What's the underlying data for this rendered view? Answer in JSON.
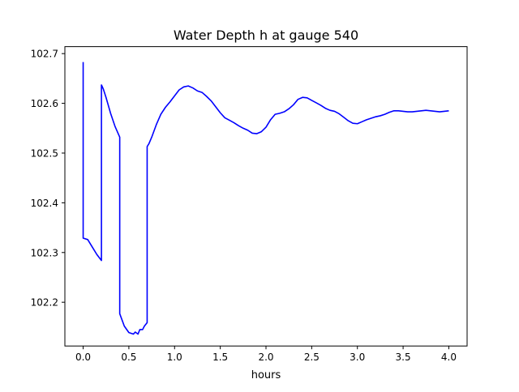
{
  "chart_data": {
    "type": "line",
    "title": "Water Depth h at gauge 540",
    "xlabel": "hours",
    "ylabel": "",
    "xlim": [
      -0.2,
      4.2
    ],
    "ylim": [
      102.112,
      102.714
    ],
    "xticks": [
      0.0,
      0.5,
      1.0,
      1.5,
      2.0,
      2.5,
      3.0,
      3.5,
      4.0
    ],
    "xtick_labels": [
      "0.0",
      "0.5",
      "1.0",
      "1.5",
      "2.0",
      "2.5",
      "3.0",
      "3.5",
      "4.0"
    ],
    "yticks": [
      102.2,
      102.3,
      102.4,
      102.5,
      102.6,
      102.7
    ],
    "ytick_labels": [
      "102.2",
      "102.3",
      "102.4",
      "102.5",
      "102.6",
      "102.7"
    ],
    "grid": false,
    "series": [
      {
        "name": "",
        "color": "#0000ff",
        "x": [
          0.0,
          0.0,
          0.05,
          0.1,
          0.15,
          0.2,
          0.2,
          0.22,
          0.25,
          0.3,
          0.35,
          0.4,
          0.4,
          0.45,
          0.5,
          0.55,
          0.57,
          0.6,
          0.62,
          0.65,
          0.67,
          0.7,
          0.7,
          0.72,
          0.75,
          0.8,
          0.85,
          0.9,
          0.95,
          1.0,
          1.05,
          1.1,
          1.15,
          1.2,
          1.25,
          1.3,
          1.35,
          1.4,
          1.45,
          1.5,
          1.55,
          1.6,
          1.65,
          1.7,
          1.75,
          1.8,
          1.85,
          1.9,
          1.95,
          2.0,
          2.05,
          2.1,
          2.15,
          2.2,
          2.25,
          2.3,
          2.35,
          2.4,
          2.45,
          2.5,
          2.55,
          2.6,
          2.65,
          2.7,
          2.75,
          2.8,
          2.85,
          2.9,
          2.95,
          3.0,
          3.05,
          3.1,
          3.15,
          3.2,
          3.25,
          3.3,
          3.35,
          3.4,
          3.45,
          3.5,
          3.55,
          3.6,
          3.65,
          3.7,
          3.75,
          3.8,
          3.85,
          3.9,
          3.95,
          4.0
        ],
        "y": [
          102.683,
          102.329,
          102.326,
          102.311,
          102.296,
          102.284,
          102.637,
          102.629,
          102.612,
          102.58,
          102.553,
          102.532,
          102.177,
          102.152,
          102.139,
          102.136,
          102.14,
          102.136,
          102.145,
          102.145,
          102.152,
          102.159,
          102.513,
          102.519,
          102.532,
          102.557,
          102.578,
          102.592,
          102.603,
          102.615,
          102.627,
          102.633,
          102.635,
          102.631,
          102.625,
          102.622,
          102.614,
          102.605,
          102.593,
          102.581,
          102.571,
          102.566,
          102.561,
          102.555,
          102.55,
          102.546,
          102.54,
          102.539,
          102.543,
          102.552,
          102.567,
          102.578,
          102.58,
          102.583,
          102.589,
          102.597,
          102.608,
          102.612,
          102.611,
          102.606,
          102.601,
          102.596,
          102.59,
          102.586,
          102.584,
          102.579,
          102.572,
          102.565,
          102.56,
          102.559,
          102.563,
          102.567,
          102.57,
          102.573,
          102.575,
          102.578,
          102.582,
          102.585,
          102.585,
          102.584,
          102.583,
          102.583,
          102.584,
          102.585,
          102.586,
          102.585,
          102.584,
          102.583,
          102.584,
          102.585
        ]
      }
    ]
  }
}
